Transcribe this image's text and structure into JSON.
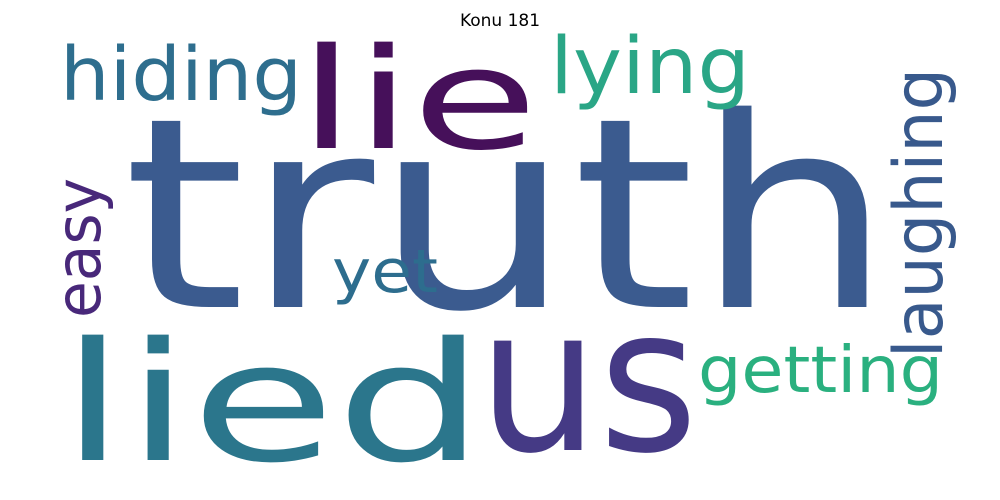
{
  "title": "Konu 181",
  "words": [
    {
      "text": "truth",
      "color": "#3b5b8f"
    },
    {
      "text": "lie",
      "color": "#46105a"
    },
    {
      "text": "lied",
      "color": "#2b768c"
    },
    {
      "text": "us",
      "color": "#453a85"
    },
    {
      "text": "hiding",
      "color": "#2e6e8e"
    },
    {
      "text": "lying",
      "color": "#2aa686"
    },
    {
      "text": "laughing",
      "color": "#38598c"
    },
    {
      "text": "easy",
      "color": "#48287a"
    },
    {
      "text": "yet",
      "color": "#2d6d8e"
    },
    {
      "text": "getting",
      "color": "#2ab07f"
    }
  ]
}
